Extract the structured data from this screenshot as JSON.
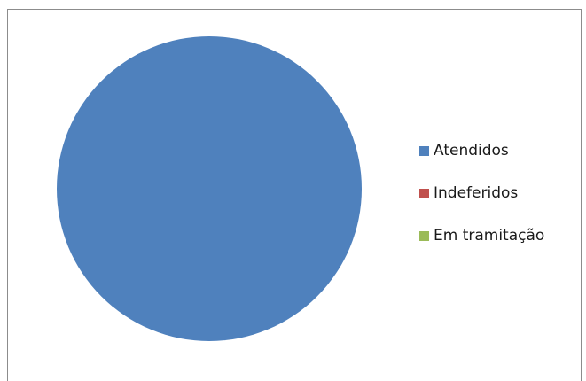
{
  "chart_data": {
    "type": "pie",
    "title": "",
    "categories": [
      "Atendidos",
      "Indeferidos",
      "Em tramitação"
    ],
    "values": [
      100,
      0,
      0
    ],
    "colors": [
      "#4f81bd",
      "#c0504d",
      "#9bbb59"
    ],
    "legend": "right"
  }
}
